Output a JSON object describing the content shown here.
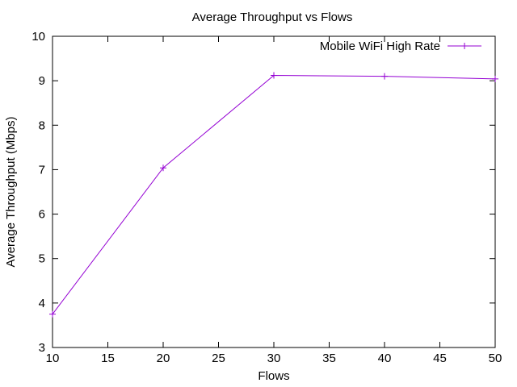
{
  "chart_data": {
    "type": "line",
    "title": "Average Throughput vs Flows",
    "xlabel": "Flows",
    "ylabel": "Average Throughput (Mbps)",
    "xlim": [
      10,
      50
    ],
    "ylim": [
      3,
      10
    ],
    "xticks": [
      10,
      15,
      20,
      25,
      30,
      35,
      40,
      45,
      50
    ],
    "yticks": [
      3,
      4,
      5,
      6,
      7,
      8,
      9,
      10
    ],
    "grid": false,
    "legend_position": "top-right",
    "series": [
      {
        "name": "Mobile WiFi High Rate",
        "color": "#9400d3",
        "marker": "plus",
        "x": [
          10,
          20,
          30,
          40,
          50
        ],
        "y": [
          3.75,
          7.04,
          9.12,
          9.1,
          9.04
        ]
      }
    ]
  }
}
